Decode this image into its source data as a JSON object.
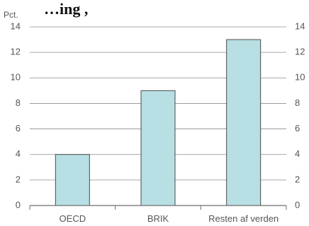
{
  "chart_data": {
    "type": "bar",
    "title": "…ing   ,",
    "unit_label": "Pct.",
    "categories": [
      "OECD",
      "BRIK",
      "Resten af verden"
    ],
    "values": [
      4,
      9,
      13
    ],
    "ylim": [
      0,
      14
    ],
    "yticks": [
      0,
      2,
      4,
      6,
      8,
      10,
      12,
      14
    ],
    "dual_y_axis": true,
    "grid": true,
    "colors": {
      "bar_fill": "#b8dfe3",
      "bar_stroke": "#4a4a4a",
      "grid": "#8c8c8c",
      "axis": "#6e6e6e",
      "text": "#555555"
    }
  }
}
